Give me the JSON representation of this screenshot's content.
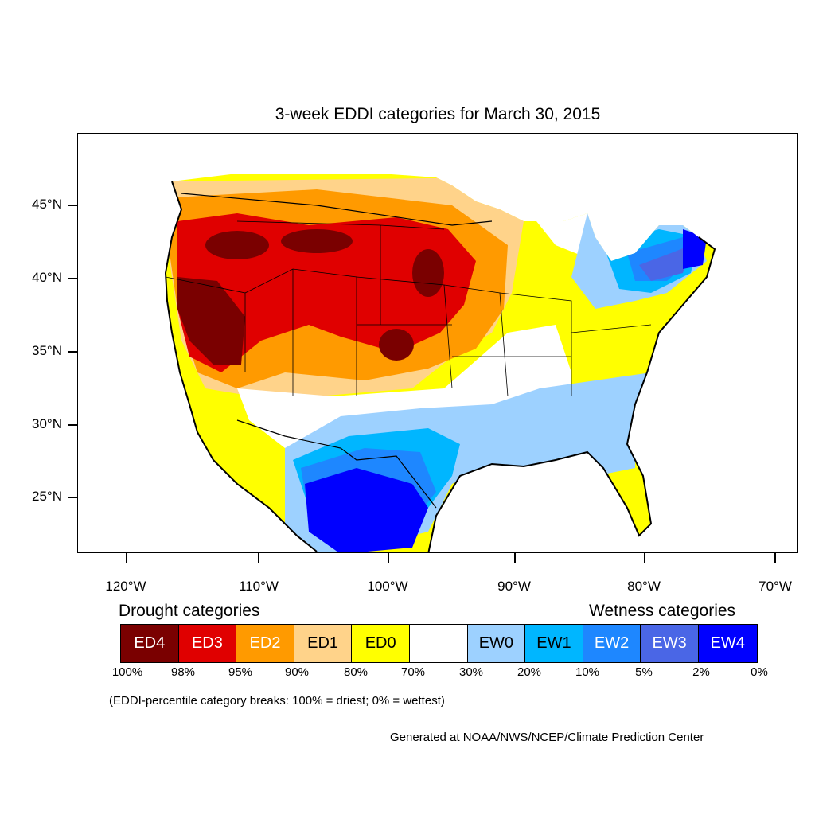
{
  "title": "3-week EDDI categories for March 30, 2015",
  "axes": {
    "lat_labels": [
      "45°N",
      "40°N",
      "35°N",
      "30°N",
      "25°N"
    ],
    "lon_labels": [
      "120°W",
      "110°W",
      "100°W",
      "90°W",
      "80°W",
      "70°W"
    ]
  },
  "legend": {
    "drought_label": "Drought categories",
    "wetness_label": "Wetness categories",
    "categories": [
      {
        "label": "ED4",
        "color": "#7a0000",
        "text_color": "#ffffff"
      },
      {
        "label": "ED3",
        "color": "#e00000",
        "text_color": "#ffffff"
      },
      {
        "label": "ED2",
        "color": "#ff9a00",
        "text_color": "#ffffff"
      },
      {
        "label": "ED1",
        "color": "#ffd38a",
        "text_color": "#000000"
      },
      {
        "label": "ED0",
        "color": "#ffff00",
        "text_color": "#000000"
      },
      {
        "label": "",
        "color": "#ffffff",
        "text_color": "#000000"
      },
      {
        "label": "EW0",
        "color": "#9dd1ff",
        "text_color": "#000000"
      },
      {
        "label": "EW1",
        "color": "#00b6ff",
        "text_color": "#000000"
      },
      {
        "label": "EW2",
        "color": "#1e87ff",
        "text_color": "#ffffff"
      },
      {
        "label": "EW3",
        "color": "#4a66e6",
        "text_color": "#ffffff"
      },
      {
        "label": "EW4",
        "color": "#0000ff",
        "text_color": "#ffffff"
      }
    ],
    "breaks": [
      "100%",
      "98%",
      "95%",
      "90%",
      "80%",
      "70%",
      "30%",
      "20%",
      "10%",
      "5%",
      "2%",
      "0%"
    ]
  },
  "note": "(EDDI-percentile category breaks: 100% = driest; 0% = wettest)",
  "credit": "Generated at NOAA/NWS/NCEP/Climate Prediction Center"
}
